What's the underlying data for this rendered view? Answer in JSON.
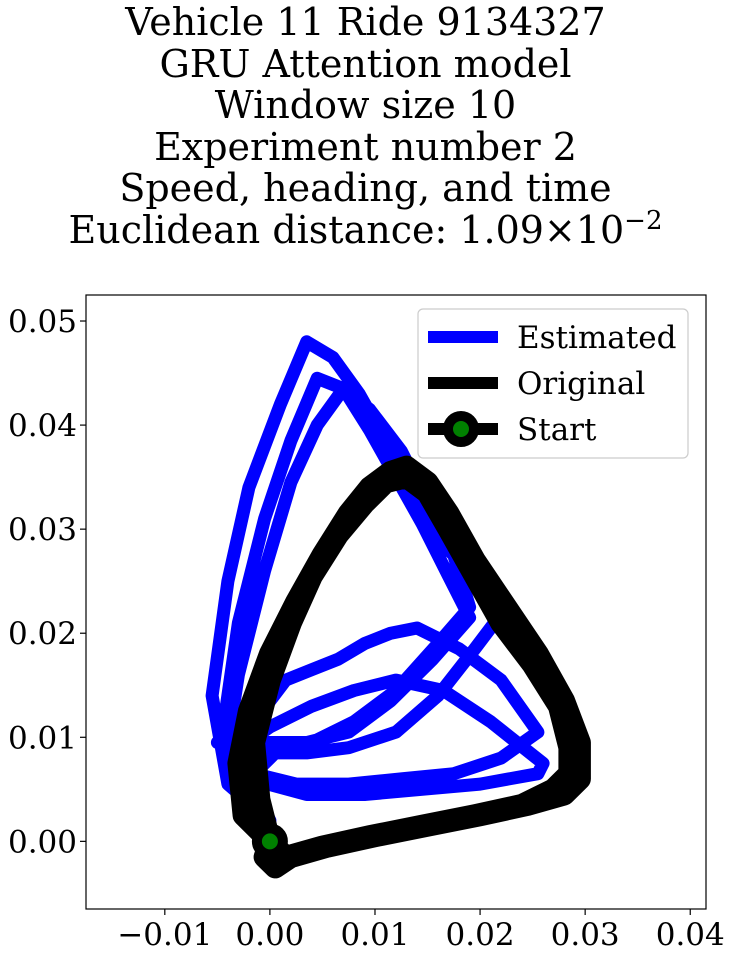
{
  "chart_data": {
    "type": "line",
    "title_lines": [
      "Vehicle 11 Ride 9134327",
      "GRU Attention model",
      "Window size 10",
      "Experiment number 2",
      "Speed, heading, and time"
    ],
    "distance_label": "Euclidean distance: ",
    "distance_mantissa": "1.09",
    "distance_times": "×",
    "distance_base": "10",
    "distance_exponent": "−2",
    "xlim": [
      -0.0175,
      0.0415
    ],
    "ylim": [
      -0.0065,
      0.0525
    ],
    "xticks": [
      -0.01,
      0.0,
      0.01,
      0.02,
      0.03,
      0.04
    ],
    "xtick_labels": [
      "−0.01",
      "0.00",
      "0.01",
      "0.02",
      "0.03",
      "0.04"
    ],
    "yticks": [
      0.0,
      0.01,
      0.02,
      0.03,
      0.04,
      0.05
    ],
    "ytick_labels": [
      "0.00",
      "0.01",
      "0.02",
      "0.03",
      "0.04",
      "0.05"
    ],
    "grid": false,
    "legend_position": "upper right",
    "colors": {
      "estimated": "#0000ff",
      "original": "#000000",
      "start": "#008000"
    },
    "series": [
      {
        "name": "Estimated",
        "x": [
          0.0,
          -0.004,
          -0.0055,
          -0.004,
          -0.002,
          0.001,
          0.0035,
          0.006,
          0.0085,
          0.011,
          0.0135,
          0.0165,
          0.0195,
          0.0225,
          0.0195,
          0.016,
          0.012,
          0.0075,
          0.0035,
          -0.0005,
          -0.0035,
          0.0,
          0.004,
          0.008,
          0.012,
          0.0165,
          0.021,
          0.026,
          0.0255,
          0.02,
          0.0145,
          0.009,
          0.0035,
          -0.002,
          -0.0045,
          -0.003,
          -0.0005,
          0.002,
          0.0045,
          0.007,
          0.0095,
          0.012,
          0.0145,
          0.017,
          0.019,
          0.0155,
          0.0115,
          0.0075,
          0.0035,
          -0.001,
          -0.005,
          -0.0025,
          0.0,
          0.0015,
          0.004,
          0.0065,
          0.009,
          0.0115,
          0.014,
          0.018,
          0.022,
          0.0255,
          0.022,
          0.0175,
          0.0125,
          0.0075,
          0.0025,
          -0.0015,
          -0.004,
          -0.003,
          -0.0005,
          0.002,
          0.0045,
          0.007,
          0.0095,
          0.0125,
          0.015,
          0.0175,
          0.019,
          0.016,
          0.012,
          0.008,
          0.004,
          0.0005,
          -0.002,
          0.0
        ],
        "y": [
          0.002,
          0.0055,
          0.014,
          0.025,
          0.034,
          0.042,
          0.048,
          0.0465,
          0.043,
          0.0385,
          0.033,
          0.0285,
          0.0255,
          0.0225,
          0.0185,
          0.014,
          0.0105,
          0.009,
          0.0085,
          0.0085,
          0.0085,
          0.011,
          0.013,
          0.0145,
          0.0155,
          0.0145,
          0.0115,
          0.0075,
          0.0065,
          0.0055,
          0.005,
          0.0045,
          0.0045,
          0.006,
          0.0105,
          0.021,
          0.031,
          0.0385,
          0.0445,
          0.0435,
          0.0395,
          0.035,
          0.0305,
          0.0255,
          0.0215,
          0.0175,
          0.0135,
          0.0105,
          0.0095,
          0.0095,
          0.0095,
          0.0115,
          0.0135,
          0.0155,
          0.0165,
          0.0175,
          0.019,
          0.02,
          0.0205,
          0.0185,
          0.0155,
          0.0105,
          0.008,
          0.0065,
          0.006,
          0.0055,
          0.0055,
          0.0065,
          0.0095,
          0.016,
          0.026,
          0.0345,
          0.04,
          0.0435,
          0.0415,
          0.0375,
          0.0325,
          0.0275,
          0.0225,
          0.019,
          0.0145,
          0.0115,
          0.0095,
          0.0085,
          0.006,
          0.002
        ]
      },
      {
        "name": "Original",
        "x": [
          0.0,
          -0.0025,
          -0.003,
          -0.002,
          0.0,
          0.0025,
          0.005,
          0.0075,
          0.0095,
          0.0115,
          0.013,
          0.015,
          0.017,
          0.0195,
          0.0225,
          0.0255,
          0.028,
          0.0295,
          0.0295,
          0.028,
          0.0245,
          0.02,
          0.015,
          0.01,
          0.0055,
          0.002,
          0.0005,
          -0.0005,
          0.0,
          -0.001,
          -0.0015,
          0.0,
          0.002,
          0.004,
          0.0065,
          0.009,
          0.011,
          0.013,
          0.015,
          0.017,
          0.0195,
          0.022,
          0.025,
          0.0275,
          0.0285,
          0.0285,
          0.027,
          0.024,
          0.0195,
          0.0145,
          0.0095,
          0.005,
          0.0015,
          0.0
        ],
        "y": [
          0.0,
          0.0025,
          0.0075,
          0.0125,
          0.018,
          0.023,
          0.0275,
          0.0315,
          0.034,
          0.0355,
          0.036,
          0.0345,
          0.0315,
          0.027,
          0.0225,
          0.018,
          0.0135,
          0.0095,
          0.006,
          0.0045,
          0.0035,
          0.0025,
          0.0015,
          0.0005,
          -0.0005,
          -0.0015,
          -0.0025,
          -0.0015,
          0.0,
          0.004,
          0.0095,
          0.0155,
          0.021,
          0.0255,
          0.0295,
          0.0325,
          0.0345,
          0.035,
          0.0335,
          0.03,
          0.0255,
          0.021,
          0.017,
          0.013,
          0.009,
          0.0065,
          0.005,
          0.0035,
          0.0025,
          0.0015,
          0.0005,
          -0.0005,
          -0.0015,
          0.0
        ]
      }
    ],
    "start": {
      "name": "Start",
      "x": 0.0,
      "y": 0.0
    }
  }
}
